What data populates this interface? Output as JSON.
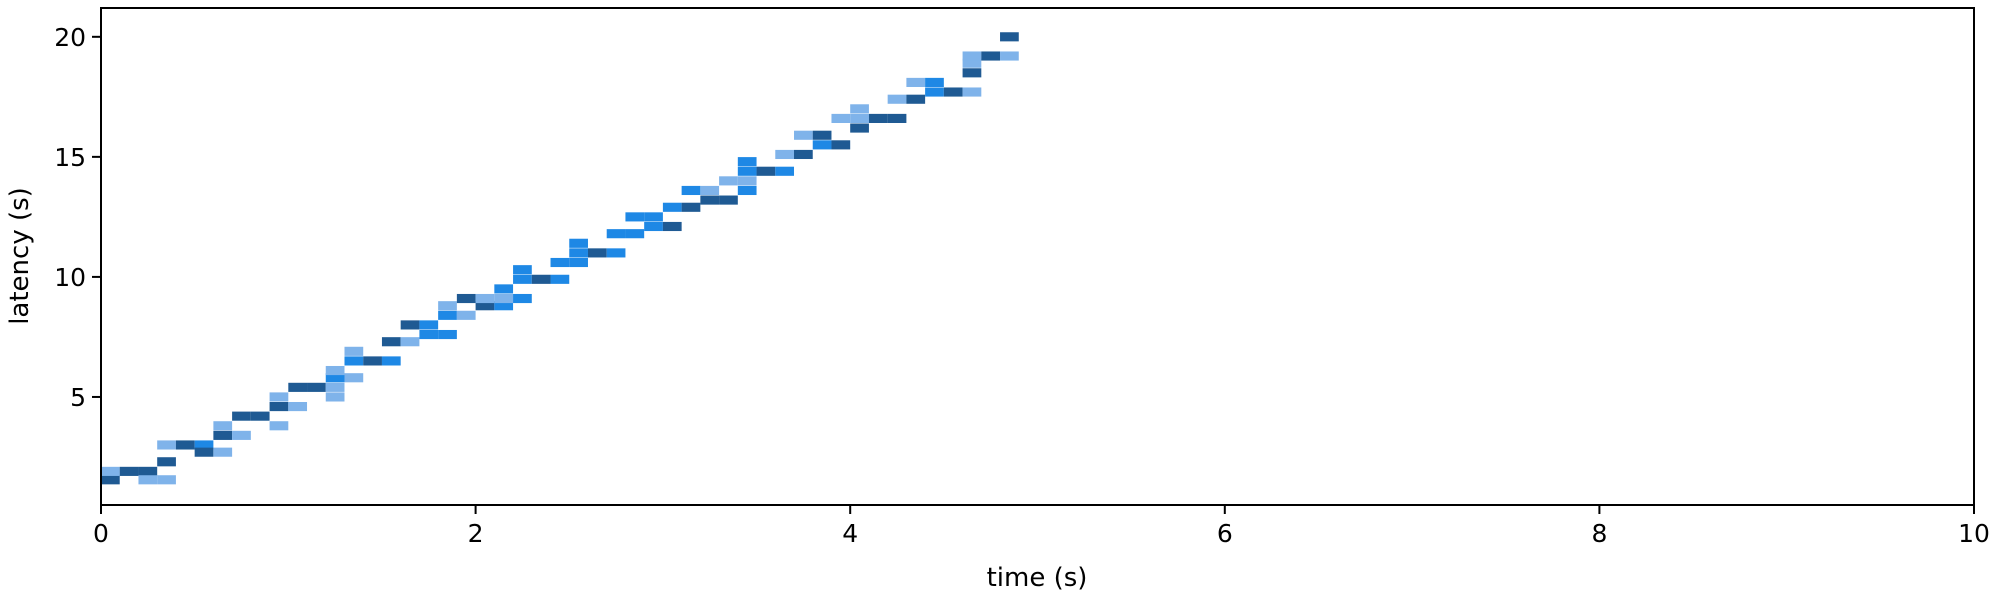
{
  "chart_data": {
    "type": "heatmap",
    "title": "",
    "xlabel": "time (s)",
    "ylabel": "latency (s)",
    "xlim": [
      0,
      10
    ],
    "ylim": [
      0.5,
      21.2
    ],
    "xticks": [
      "0",
      "2",
      "4",
      "6",
      "8",
      "10"
    ],
    "yticks": [
      "5",
      "10",
      "15",
      "20"
    ],
    "grid": false,
    "legend": "none",
    "bin_width_x": 0.1,
    "bin_height_y": 0.38,
    "colors": {
      "dark": "#1f5a93",
      "mid": "#1e88e5",
      "light": "#7fb3ea"
    },
    "cells": [
      {
        "x": 0.0,
        "y": 1.55,
        "level": "dark"
      },
      {
        "x": 0.0,
        "y": 1.9,
        "level": "light"
      },
      {
        "x": 0.1,
        "y": 1.9,
        "level": "dark"
      },
      {
        "x": 0.2,
        "y": 1.9,
        "level": "dark"
      },
      {
        "x": 0.2,
        "y": 1.55,
        "level": "light"
      },
      {
        "x": 0.3,
        "y": 1.55,
        "level": "light"
      },
      {
        "x": 0.3,
        "y": 2.3,
        "level": "dark"
      },
      {
        "x": 0.3,
        "y": 3.0,
        "level": "light"
      },
      {
        "x": 0.4,
        "y": 3.0,
        "level": "dark"
      },
      {
        "x": 0.5,
        "y": 3.0,
        "level": "mid"
      },
      {
        "x": 0.5,
        "y": 2.7,
        "level": "dark"
      },
      {
        "x": 0.6,
        "y": 2.7,
        "level": "light"
      },
      {
        "x": 0.6,
        "y": 3.4,
        "level": "dark"
      },
      {
        "x": 0.6,
        "y": 3.8,
        "level": "light"
      },
      {
        "x": 0.7,
        "y": 3.4,
        "level": "light"
      },
      {
        "x": 0.7,
        "y": 4.2,
        "level": "dark"
      },
      {
        "x": 0.8,
        "y": 4.2,
        "level": "dark"
      },
      {
        "x": 0.9,
        "y": 3.8,
        "level": "light"
      },
      {
        "x": 0.9,
        "y": 4.6,
        "level": "dark"
      },
      {
        "x": 0.9,
        "y": 5.0,
        "level": "light"
      },
      {
        "x": 1.0,
        "y": 4.6,
        "level": "light"
      },
      {
        "x": 1.0,
        "y": 5.4,
        "level": "dark"
      },
      {
        "x": 1.1,
        "y": 5.4,
        "level": "dark"
      },
      {
        "x": 1.2,
        "y": 5.0,
        "level": "light"
      },
      {
        "x": 1.2,
        "y": 5.4,
        "level": "light"
      },
      {
        "x": 1.2,
        "y": 5.8,
        "level": "mid"
      },
      {
        "x": 1.2,
        "y": 6.1,
        "level": "light"
      },
      {
        "x": 1.3,
        "y": 5.8,
        "level": "light"
      },
      {
        "x": 1.3,
        "y": 6.5,
        "level": "mid"
      },
      {
        "x": 1.3,
        "y": 6.9,
        "level": "light"
      },
      {
        "x": 1.4,
        "y": 6.5,
        "level": "dark"
      },
      {
        "x": 1.5,
        "y": 6.5,
        "level": "mid"
      },
      {
        "x": 1.5,
        "y": 7.3,
        "level": "dark"
      },
      {
        "x": 1.6,
        "y": 7.3,
        "level": "light"
      },
      {
        "x": 1.6,
        "y": 8.0,
        "level": "dark"
      },
      {
        "x": 1.7,
        "y": 7.6,
        "level": "mid"
      },
      {
        "x": 1.7,
        "y": 8.0,
        "level": "mid"
      },
      {
        "x": 1.8,
        "y": 7.6,
        "level": "mid"
      },
      {
        "x": 1.8,
        "y": 8.4,
        "level": "mid"
      },
      {
        "x": 1.8,
        "y": 8.8,
        "level": "light"
      },
      {
        "x": 1.9,
        "y": 8.4,
        "level": "light"
      },
      {
        "x": 1.9,
        "y": 9.1,
        "level": "dark"
      },
      {
        "x": 2.0,
        "y": 8.8,
        "level": "dark"
      },
      {
        "x": 2.0,
        "y": 9.1,
        "level": "light"
      },
      {
        "x": 2.1,
        "y": 8.8,
        "level": "mid"
      },
      {
        "x": 2.1,
        "y": 9.1,
        "level": "light"
      },
      {
        "x": 2.1,
        "y": 9.5,
        "level": "mid"
      },
      {
        "x": 2.2,
        "y": 9.1,
        "level": "mid"
      },
      {
        "x": 2.2,
        "y": 9.9,
        "level": "mid"
      },
      {
        "x": 2.2,
        "y": 10.3,
        "level": "mid"
      },
      {
        "x": 2.3,
        "y": 9.9,
        "level": "dark"
      },
      {
        "x": 2.4,
        "y": 9.9,
        "level": "mid"
      },
      {
        "x": 2.4,
        "y": 10.6,
        "level": "mid"
      },
      {
        "x": 2.5,
        "y": 10.6,
        "level": "mid"
      },
      {
        "x": 2.5,
        "y": 11.0,
        "level": "mid"
      },
      {
        "x": 2.5,
        "y": 11.4,
        "level": "mid"
      },
      {
        "x": 2.6,
        "y": 11.0,
        "level": "dark"
      },
      {
        "x": 2.7,
        "y": 11.0,
        "level": "mid"
      },
      {
        "x": 2.7,
        "y": 11.8,
        "level": "mid"
      },
      {
        "x": 2.8,
        "y": 11.8,
        "level": "mid"
      },
      {
        "x": 2.8,
        "y": 12.5,
        "level": "mid"
      },
      {
        "x": 2.9,
        "y": 12.1,
        "level": "mid"
      },
      {
        "x": 2.9,
        "y": 12.5,
        "level": "mid"
      },
      {
        "x": 3.0,
        "y": 12.1,
        "level": "dark"
      },
      {
        "x": 3.0,
        "y": 12.9,
        "level": "mid"
      },
      {
        "x": 3.1,
        "y": 12.9,
        "level": "dark"
      },
      {
        "x": 3.1,
        "y": 13.6,
        "level": "mid"
      },
      {
        "x": 3.2,
        "y": 13.2,
        "level": "dark"
      },
      {
        "x": 3.2,
        "y": 13.6,
        "level": "light"
      },
      {
        "x": 3.3,
        "y": 13.2,
        "level": "dark"
      },
      {
        "x": 3.3,
        "y": 14.0,
        "level": "light"
      },
      {
        "x": 3.4,
        "y": 13.6,
        "level": "mid"
      },
      {
        "x": 3.4,
        "y": 14.0,
        "level": "light"
      },
      {
        "x": 3.4,
        "y": 14.4,
        "level": "mid"
      },
      {
        "x": 3.4,
        "y": 14.8,
        "level": "mid"
      },
      {
        "x": 3.5,
        "y": 14.4,
        "level": "dark"
      },
      {
        "x": 3.6,
        "y": 14.4,
        "level": "mid"
      },
      {
        "x": 3.6,
        "y": 15.1,
        "level": "light"
      },
      {
        "x": 3.7,
        "y": 15.1,
        "level": "dark"
      },
      {
        "x": 3.7,
        "y": 15.9,
        "level": "light"
      },
      {
        "x": 3.8,
        "y": 15.5,
        "level": "mid"
      },
      {
        "x": 3.8,
        "y": 15.9,
        "level": "dark"
      },
      {
        "x": 3.9,
        "y": 15.5,
        "level": "dark"
      },
      {
        "x": 3.9,
        "y": 16.6,
        "level": "light"
      },
      {
        "x": 4.0,
        "y": 16.2,
        "level": "dark"
      },
      {
        "x": 4.0,
        "y": 16.6,
        "level": "light"
      },
      {
        "x": 4.0,
        "y": 17.0,
        "level": "light"
      },
      {
        "x": 4.1,
        "y": 16.6,
        "level": "dark"
      },
      {
        "x": 4.2,
        "y": 16.6,
        "level": "dark"
      },
      {
        "x": 4.2,
        "y": 17.4,
        "level": "light"
      },
      {
        "x": 4.3,
        "y": 17.4,
        "level": "dark"
      },
      {
        "x": 4.3,
        "y": 18.1,
        "level": "light"
      },
      {
        "x": 4.4,
        "y": 17.7,
        "level": "mid"
      },
      {
        "x": 4.4,
        "y": 18.1,
        "level": "mid"
      },
      {
        "x": 4.5,
        "y": 17.7,
        "level": "dark"
      },
      {
        "x": 4.6,
        "y": 17.7,
        "level": "light"
      },
      {
        "x": 4.6,
        "y": 18.5,
        "level": "dark"
      },
      {
        "x": 4.6,
        "y": 18.9,
        "level": "light"
      },
      {
        "x": 4.6,
        "y": 19.2,
        "level": "light"
      },
      {
        "x": 4.7,
        "y": 19.2,
        "level": "dark"
      },
      {
        "x": 4.8,
        "y": 19.2,
        "level": "light"
      },
      {
        "x": 4.8,
        "y": 20.0,
        "level": "dark"
      }
    ]
  }
}
